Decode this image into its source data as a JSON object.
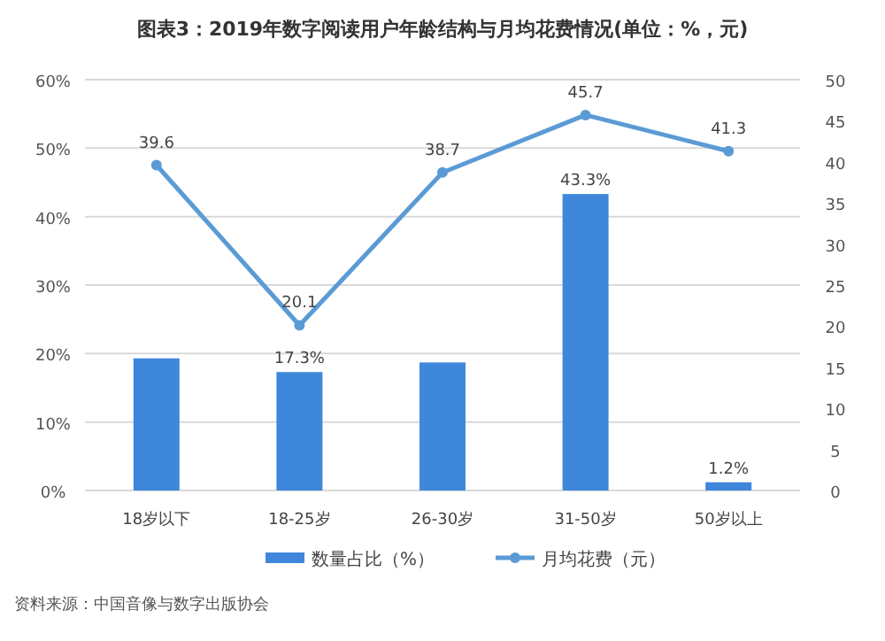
{
  "chart_data": {
    "type": "bar",
    "title": "图表3：2019年数字阅读用户年龄结构与月均花费情况(单位：%，元)",
    "categories": [
      "18岁以下",
      "18-25岁",
      "26-30岁",
      "31-50岁",
      "50岁以上"
    ],
    "series": [
      {
        "name": "数量占比（%）",
        "color": "#3f87db",
        "values": [
          19.3,
          17.3,
          18.7,
          43.3,
          1.2
        ],
        "value_labels": [
          null,
          "17.3%",
          null,
          "43.3%",
          "1.2%"
        ]
      },
      {
        "name": "月均花费（元）",
        "type": "line",
        "axis": "y2",
        "color": "#5b9bd5",
        "values": [
          39.6,
          20.1,
          38.7,
          45.7,
          41.3
        ],
        "value_labels": [
          "39.6",
          "20.1",
          "38.7",
          "45.7",
          "41.3"
        ]
      }
    ],
    "ylim": [
      0,
      60
    ],
    "yticks": [
      {
        "value": 0,
        "label": "0%"
      },
      {
        "value": 10,
        "label": "10%"
      },
      {
        "value": 20,
        "label": "20%"
      },
      {
        "value": 30,
        "label": "30%"
      },
      {
        "value": 40,
        "label": "40%"
      },
      {
        "value": 50,
        "label": "50%"
      },
      {
        "value": 60,
        "label": "60%"
      }
    ],
    "y2lim": [
      0,
      50
    ],
    "y2ticks": [
      0,
      5,
      10,
      15,
      20,
      25,
      30,
      35,
      40,
      45,
      50
    ],
    "grid": "y",
    "legend": "bottom",
    "marker": "circle",
    "line_style": "solid",
    "annotations": [
      "资料来源：中国音像与数字出版协会"
    ]
  }
}
